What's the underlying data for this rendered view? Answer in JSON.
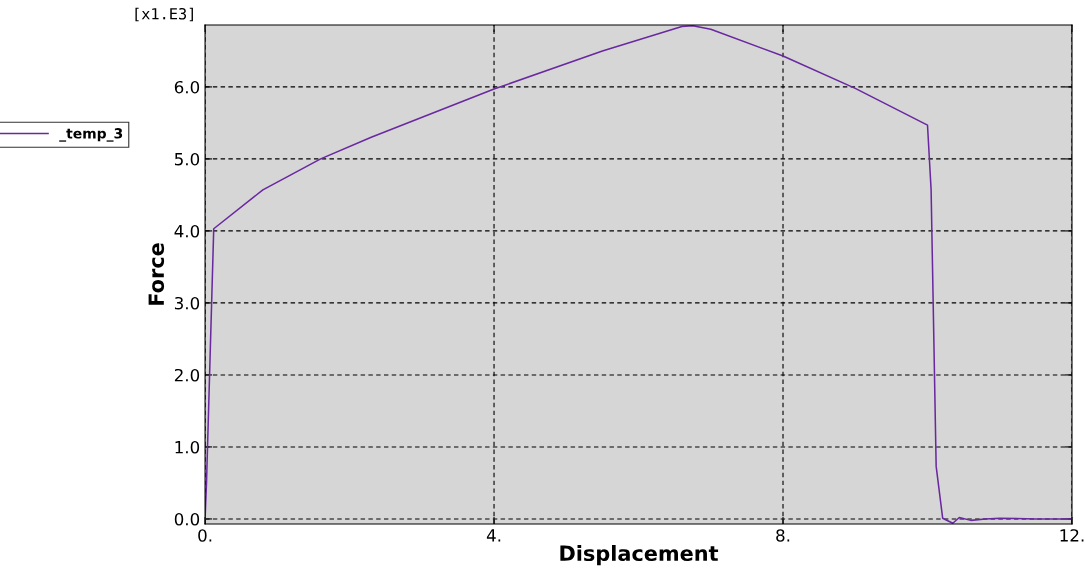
{
  "chart_data": {
    "type": "line",
    "xlabel": "Displacement",
    "ylabel": "Force",
    "annotations": [
      "[x1.E3]"
    ],
    "series": [
      {
        "name": "_temp_3",
        "color": "#6a28a0",
        "x": [
          0,
          0.02,
          0.12,
          0.8,
          1.6,
          2.3,
          4.0,
          5.5,
          6.6,
          6.75,
          7.0,
          8.0,
          9.0,
          10.0,
          10.05,
          10.12,
          10.21,
          10.35,
          10.44,
          10.6,
          10.8,
          11.0,
          11.5,
          12.0
        ],
        "values": [
          0,
          0.5,
          4.03,
          4.57,
          5.0,
          5.3,
          5.97,
          6.5,
          6.84,
          6.85,
          6.8,
          6.43,
          5.98,
          5.47,
          4.57,
          0.73,
          0.01,
          -0.06,
          0.02,
          -0.02,
          0.0,
          0.01,
          0.0,
          0.0
        ]
      }
    ],
    "xlim": [
      0,
      12
    ],
    "ylim": [
      -0.07,
      6.86
    ],
    "xticks": [
      {
        "value": 0,
        "label": "0."
      },
      {
        "value": 4,
        "label": "4."
      },
      {
        "value": 8,
        "label": "8."
      },
      {
        "value": 12,
        "label": "12."
      }
    ],
    "yticks": [
      {
        "value": 0,
        "label": "0.0"
      },
      {
        "value": 1,
        "label": "1.0"
      },
      {
        "value": 2,
        "label": "2.0"
      },
      {
        "value": 3,
        "label": "3.0"
      },
      {
        "value": 4,
        "label": "4.0"
      },
      {
        "value": 5,
        "label": "5.0"
      },
      {
        "value": 6,
        "label": "6.0"
      }
    ],
    "grid": true,
    "legend": "left",
    "line_style": "solid",
    "marker": "none"
  }
}
